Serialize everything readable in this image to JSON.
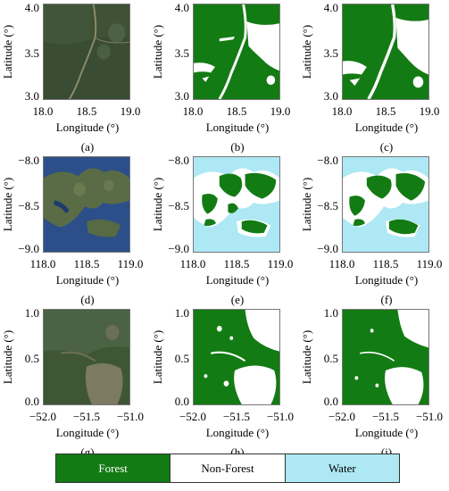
{
  "colors": {
    "forest": "#137b13",
    "non_forest": "#ffffff",
    "water": "#ade8f4"
  },
  "axes": {
    "ylabel": "Latitude (°)",
    "xlabel": "Longitude (°)"
  },
  "rows": [
    {
      "yticks": [
        "4.0",
        "3.5",
        "3.0"
      ],
      "xticks": [
        "18.0",
        "18.5",
        "19.0"
      ]
    },
    {
      "yticks": [
        "−8.0",
        "−8.5",
        "−9.0"
      ],
      "xticks": [
        "118.0",
        "118.5",
        "119.0"
      ]
    },
    {
      "yticks": [
        "1.0",
        "0.5",
        "0.0"
      ],
      "xticks": [
        "−52.0",
        "−51.5",
        "−51.0"
      ]
    }
  ],
  "panels": [
    {
      "caption": "(a)",
      "kind": "satellite"
    },
    {
      "caption": "(b)",
      "kind": "forest-map"
    },
    {
      "caption": "(c)",
      "kind": "forest-map"
    },
    {
      "caption": "(d)",
      "kind": "satellite"
    },
    {
      "caption": "(e)",
      "kind": "forest-map"
    },
    {
      "caption": "(f)",
      "kind": "forest-map"
    },
    {
      "caption": "(g)",
      "kind": "satellite"
    },
    {
      "caption": "(h)",
      "kind": "forest-map"
    },
    {
      "caption": "(i)",
      "kind": "forest-map"
    }
  ],
  "legend": [
    {
      "label": "Forest",
      "color": "#137b13",
      "text_color": "#ffffff"
    },
    {
      "label": "Non-Forest",
      "color": "#ffffff",
      "text_color": "#000000"
    },
    {
      "label": "Water",
      "color": "#ade8f4",
      "text_color": "#000000"
    }
  ]
}
